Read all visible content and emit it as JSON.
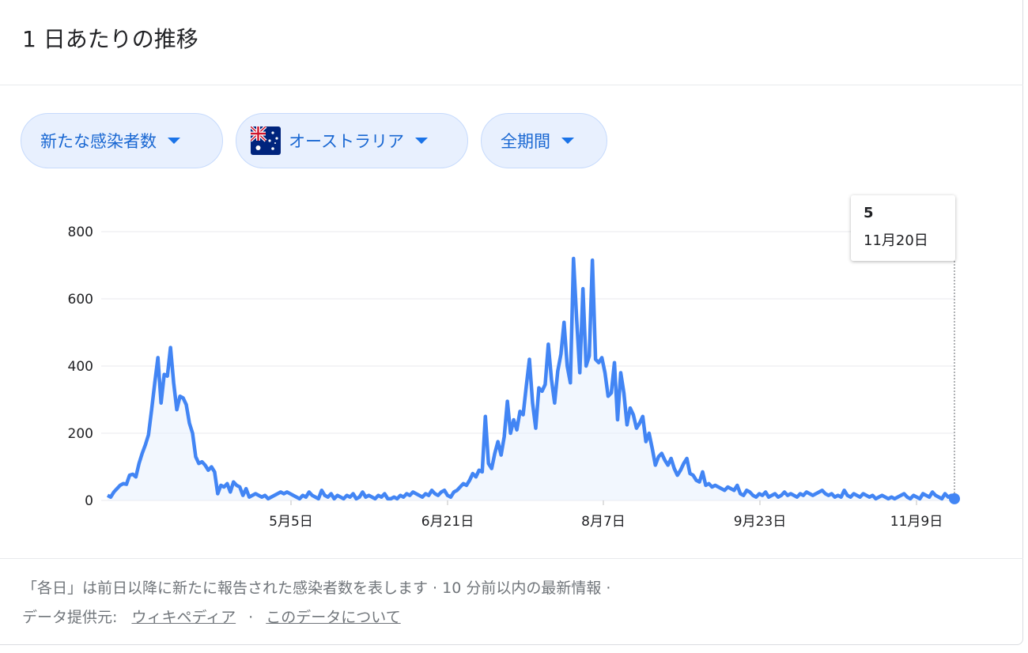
{
  "header": {
    "title": "1 日あたりの推移"
  },
  "filters": {
    "metric": "新たな感染者数",
    "region": "オーストラリア",
    "period": "全期間"
  },
  "tooltip": {
    "value": "5",
    "date": "11月20日"
  },
  "footer": {
    "note": "「各日」は前日以降に新たに報告された感染者数を表します · 10 分前以内の最新情報 ·",
    "source_label": "データ提供元:",
    "source_link": "ウィキペディア",
    "separator": "·",
    "about_link": "このデータについて"
  },
  "colors": {
    "line": "#4285f4",
    "fill": "#e8f0fe",
    "grid": "#e8eaed"
  },
  "chart_data": {
    "type": "area",
    "title": "",
    "xlabel": "",
    "ylabel": "",
    "ylim": [
      0,
      800
    ],
    "yticks": [
      "0",
      "200",
      "400",
      "600",
      "800"
    ],
    "xticks": [
      "5月5日",
      "6月21日",
      "8月7日",
      "9月23日",
      "11月9日"
    ],
    "grid": true,
    "series": [
      {
        "values": [
          15,
          10,
          25,
          35,
          45,
          50,
          48,
          75,
          78,
          70,
          110,
          140,
          165,
          195,
          270,
          350,
          425,
          290,
          375,
          370,
          455,
          350,
          270,
          310,
          305,
          285,
          230,
          200,
          130,
          110,
          115,
          105,
          90,
          100,
          85,
          20,
          45,
          40,
          50,
          25,
          55,
          45,
          40,
          15,
          35,
          10,
          15,
          20,
          15,
          10,
          15,
          5,
          10,
          15,
          20,
          25,
          20,
          25,
          20,
          15,
          10,
          5,
          15,
          10,
          25,
          15,
          10,
          5,
          30,
          15,
          10,
          20,
          5,
          15,
          10,
          5,
          15,
          10,
          20,
          5,
          10,
          25,
          10,
          15,
          10,
          5,
          15,
          10,
          20,
          5,
          5,
          10,
          5,
          15,
          10,
          20,
          15,
          25,
          20,
          15,
          10,
          20,
          15,
          30,
          20,
          15,
          25,
          30,
          15,
          10,
          25,
          30,
          40,
          50,
          45,
          60,
          80,
          70,
          90,
          85,
          250,
          110,
          95,
          140,
          175,
          135,
          190,
          295,
          200,
          240,
          210,
          265,
          255,
          340,
          420,
          290,
          215,
          335,
          325,
          345,
          465,
          360,
          290,
          385,
          435,
          530,
          400,
          350,
          720,
          540,
          380,
          630,
          400,
          430,
          715,
          420,
          410,
          425,
          380,
          310,
          320,
          410,
          240,
          380,
          320,
          225,
          275,
          255,
          215,
          230,
          250,
          175,
          200,
          155,
          105,
          130,
          140,
          120,
          105,
          125,
          95,
          75,
          90,
          110,
          125,
          80,
          75,
          60,
          55,
          85,
          45,
          50,
          40,
          45,
          40,
          35,
          30,
          40,
          35,
          30,
          45,
          20,
          15,
          30,
          25,
          15,
          10,
          20,
          15,
          25,
          10,
          15,
          20,
          10,
          15,
          25,
          15,
          20,
          15,
          10,
          20,
          15,
          25,
          20,
          15,
          20,
          25,
          30,
          20,
          15,
          20,
          10,
          15,
          10,
          30,
          15,
          10,
          20,
          15,
          10,
          20,
          15,
          10,
          15,
          5,
          10,
          15,
          10,
          5,
          10,
          5,
          10,
          15,
          20,
          10,
          5,
          15,
          10,
          5,
          20,
          15,
          10,
          25,
          15,
          10,
          5,
          20,
          10,
          15,
          5
        ]
      }
    ]
  }
}
